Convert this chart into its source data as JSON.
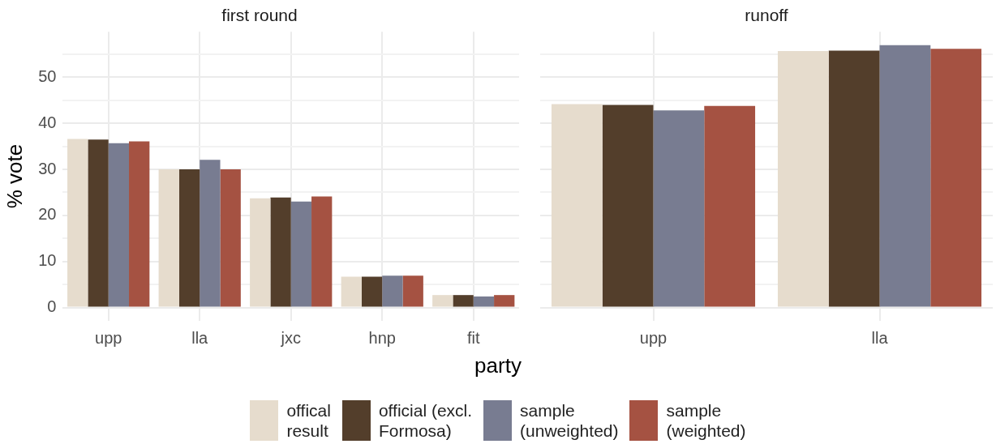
{
  "chart_data": [
    {
      "type": "bar",
      "title": "first round",
      "xlabel": "party",
      "ylabel": "% vote",
      "categories": [
        "upp",
        "lla",
        "jxc",
        "hnp",
        "fit"
      ],
      "series": [
        {
          "name": "offical result",
          "color": "#e6dccd",
          "values": [
            36.6,
            30.0,
            23.7,
            6.7,
            2.7
          ]
        },
        {
          "name": "official (excl. Formosa)",
          "color": "#533e2b",
          "values": [
            36.5,
            30.0,
            23.9,
            6.7,
            2.7
          ]
        },
        {
          "name": "sample (unweighted)",
          "color": "#787c91",
          "values": [
            35.7,
            32.1,
            23.0,
            6.9,
            2.4
          ]
        },
        {
          "name": "sample (weighted)",
          "color": "#a55242",
          "values": [
            36.1,
            30.0,
            24.1,
            6.9,
            2.7
          ]
        }
      ],
      "ylim": [
        -2.9,
        59.9
      ],
      "yticks": [
        0,
        {
          "value": 5,
          "label": null
        },
        10,
        {
          "value": 15,
          "label": null
        },
        20,
        {
          "value": 25,
          "label": null
        },
        30,
        {
          "value": 35,
          "label": null
        },
        40,
        {
          "value": 45,
          "label": null
        },
        50,
        {
          "value": 55,
          "label": null
        }
      ],
      "grid": true,
      "legend": "bottom"
    },
    {
      "type": "bar",
      "title": "runoff",
      "categories": [
        "upp",
        "lla"
      ],
      "series": [
        {
          "color": "#e6dccd",
          "values": [
            44.2,
            55.7
          ]
        },
        {
          "color": "#533e2b",
          "values": [
            44.0,
            55.8
          ]
        },
        {
          "color": "#787c91",
          "values": [
            42.8,
            57.0
          ]
        },
        {
          "color": "#a55242",
          "values": [
            43.8,
            56.2
          ]
        }
      ],
      "ylim": [
        -2.9,
        59.9
      ],
      "yticks": [
        0,
        {
          "value": 5,
          "label": null
        },
        10,
        {
          "value": 15,
          "label": null
        },
        20,
        {
          "value": 25,
          "label": null
        },
        30,
        {
          "value": 35,
          "label": null
        },
        40,
        {
          "value": 45,
          "label": null
        },
        50,
        {
          "value": 55,
          "label": null
        }
      ],
      "grid": true,
      "tick_labels": "x"
    }
  ]
}
